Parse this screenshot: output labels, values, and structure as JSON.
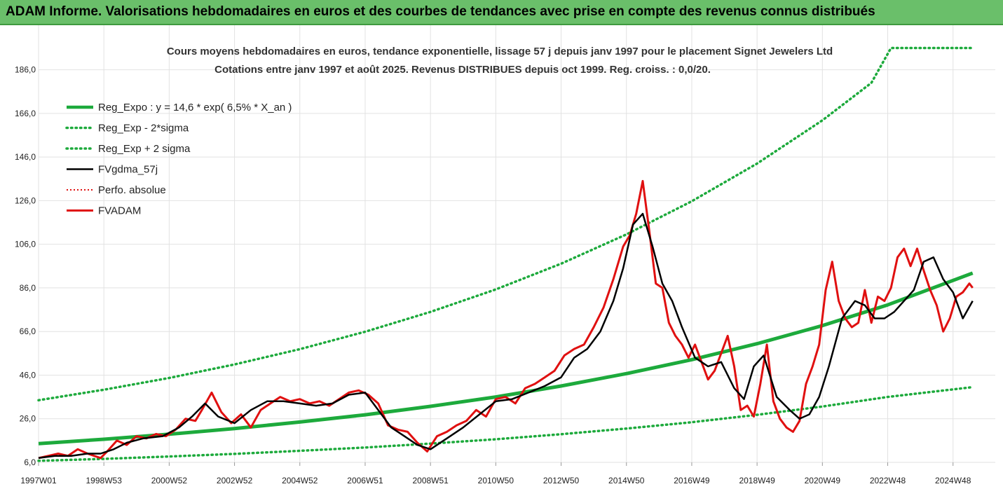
{
  "banner": {
    "title": "ADAM Informe. Valorisations hebdomadaires en euros et des courbes de tendances avec prise en compte des revenus connus distribués"
  },
  "colors": {
    "banner": "#6abf6a",
    "reg_expo": "#1daa3c",
    "fv_gdma": "#000000",
    "fvadam": "#e01010",
    "perfo": "#e01010"
  },
  "chart_data": {
    "type": "line",
    "title": "Cours moyens hebdomadaires en euros, tendance exponentielle, lissage 57 j depuis janv 1997 pour le placement Signet Jewelers Ltd",
    "subtitle": "Cotations entre janv 1997 et août 2025. Revenus DISTRIBUES depuis oct 1999. Reg. croiss. : 0,0/20.",
    "xlabel": "",
    "ylabel": "",
    "x_range": [
      1997.0,
      2025.65
    ],
    "ylim": [
      6,
      200
    ],
    "y_ticks": [
      "6,0",
      "26,0",
      "46,0",
      "66,0",
      "86,0",
      "106,0",
      "126,0",
      "146,0",
      "166,0",
      "186,0"
    ],
    "y_tick_values": [
      6,
      26,
      46,
      66,
      86,
      106,
      126,
      146,
      166,
      186
    ],
    "x_tick_labels": [
      "1997W01",
      "1998W53",
      "2000W52",
      "2002W52",
      "2004W52",
      "2006W51",
      "2008W51",
      "2010W50",
      "2012W50",
      "2014W50",
      "2016W49",
      "2018W49",
      "2020W49",
      "2022W48",
      "2024W48"
    ],
    "x_tick_values": [
      1997.0,
      1999.0,
      2001.0,
      2003.0,
      2005.0,
      2007.0,
      2009.0,
      2011.0,
      2013.0,
      2015.0,
      2017.0,
      2019.0,
      2021.0,
      2023.0,
      2025.0
    ],
    "grid": true,
    "legend_position": "top-left",
    "series": [
      {
        "name": "Reg_Expo : y = 14,6 * exp( 6,5% *  X_an )",
        "style": "solid-thick-green",
        "x": [
          1997,
          1999,
          2001,
          2003,
          2005,
          2007,
          2009,
          2011,
          2013,
          2015,
          2017,
          2019,
          2021,
          2023,
          2025.6
        ],
        "values": [
          14.6,
          16.6,
          18.9,
          21.5,
          24.5,
          27.8,
          31.7,
          36.0,
          41.0,
          46.7,
          53.1,
          60.4,
          68.7,
          78.2,
          92.8
        ]
      },
      {
        "name": "Reg_Exp - 2*sigma",
        "style": "dotted-green",
        "x": [
          1997,
          1999,
          2001,
          2003,
          2005,
          2007,
          2009,
          2011,
          2013,
          2015,
          2017,
          2019,
          2021,
          2023,
          2025.6
        ],
        "values": [
          6.7,
          7.6,
          8.7,
          9.9,
          11.3,
          12.8,
          14.6,
          16.6,
          18.9,
          21.5,
          24.4,
          27.8,
          31.6,
          36.0,
          40.5
        ]
      },
      {
        "name": "Reg_Exp + 2 sigma",
        "style": "dotted-green",
        "x": [
          1997,
          1999,
          2001,
          2003,
          2005,
          2007,
          2009,
          2011,
          2013,
          2015,
          2017,
          2019,
          2021,
          2022.5,
          2023.1,
          2025.6
        ],
        "values": [
          34.5,
          39.3,
          44.7,
          50.9,
          57.9,
          65.9,
          75.0,
          85.3,
          97.1,
          110.5,
          125.7,
          143.0,
          162.8,
          180.0,
          196.0,
          196.0
        ]
      },
      {
        "name": "FVgdma_57j",
        "style": "solid-black",
        "x": [
          1997.0,
          1997.5,
          1998.0,
          1998.5,
          1998.9,
          1999.3,
          1999.7,
          2000.2,
          2000.8,
          2001.3,
          2001.7,
          2002.1,
          2002.5,
          2003.0,
          2003.5,
          2004.0,
          2004.5,
          2005.0,
          2005.5,
          2006.0,
          2006.5,
          2007.0,
          2007.4,
          2007.8,
          2008.2,
          2008.6,
          2009.0,
          2009.5,
          2010.0,
          2010.5,
          2011.0,
          2011.5,
          2012.0,
          2012.5,
          2013.0,
          2013.4,
          2013.8,
          2014.2,
          2014.6,
          2014.9,
          2015.2,
          2015.5,
          2015.8,
          2016.1,
          2016.4,
          2016.7,
          2017.1,
          2017.5,
          2017.9,
          2018.3,
          2018.6,
          2018.9,
          2019.2,
          2019.6,
          2020.0,
          2020.3,
          2020.6,
          2020.9,
          2021.2,
          2021.6,
          2022.0,
          2022.3,
          2022.6,
          2022.9,
          2023.2,
          2023.5,
          2023.8,
          2024.1,
          2024.4,
          2024.7,
          2025.0,
          2025.3,
          2025.6
        ],
        "values": [
          8,
          9,
          9,
          10,
          10,
          12,
          15,
          17,
          18,
          22,
          27,
          33,
          27,
          24,
          30,
          34,
          34,
          33,
          32,
          33,
          37,
          38,
          30,
          22,
          18,
          14,
          12,
          17,
          22,
          28,
          34,
          35,
          38,
          41,
          45,
          54,
          58,
          66,
          80,
          95,
          115,
          120,
          105,
          88,
          80,
          68,
          54,
          50,
          52,
          40,
          35,
          50,
          55,
          36,
          30,
          26,
          28,
          36,
          50,
          72,
          80,
          78,
          72,
          72,
          75,
          80,
          85,
          98,
          100,
          90,
          84,
          72,
          80
        ]
      },
      {
        "name": "Perfo. absolue",
        "style": "dotted-red",
        "x": [],
        "values": []
      },
      {
        "name": "FVADAM",
        "style": "solid-thick-red",
        "x": [
          1997.0,
          1997.3,
          1997.6,
          1997.9,
          1998.2,
          1998.5,
          1998.9,
          1999.1,
          1999.4,
          1999.7,
          2000.0,
          2000.3,
          2000.6,
          2000.9,
          2001.2,
          2001.5,
          2001.8,
          2002.0,
          2002.3,
          2002.6,
          2002.9,
          2003.2,
          2003.5,
          2003.8,
          2004.1,
          2004.4,
          2004.7,
          2005.0,
          2005.3,
          2005.6,
          2005.9,
          2006.2,
          2006.5,
          2006.8,
          2007.1,
          2007.4,
          2007.7,
          2008.0,
          2008.3,
          2008.6,
          2008.9,
          2009.2,
          2009.5,
          2009.8,
          2010.1,
          2010.4,
          2010.7,
          2011.0,
          2011.3,
          2011.6,
          2011.9,
          2012.2,
          2012.5,
          2012.8,
          2013.1,
          2013.4,
          2013.7,
          2014.0,
          2014.3,
          2014.6,
          2014.9,
          2015.1,
          2015.3,
          2015.5,
          2015.7,
          2015.9,
          2016.1,
          2016.3,
          2016.5,
          2016.7,
          2016.9,
          2017.1,
          2017.3,
          2017.5,
          2017.7,
          2017.9,
          2018.1,
          2018.3,
          2018.5,
          2018.7,
          2018.9,
          2019.1,
          2019.3,
          2019.5,
          2019.7,
          2019.9,
          2020.1,
          2020.3,
          2020.5,
          2020.7,
          2020.9,
          2021.1,
          2021.3,
          2021.5,
          2021.7,
          2021.9,
          2022.1,
          2022.3,
          2022.5,
          2022.7,
          2022.9,
          2023.1,
          2023.3,
          2023.5,
          2023.7,
          2023.9,
          2024.1,
          2024.3,
          2024.5,
          2024.7,
          2024.9,
          2025.1,
          2025.3,
          2025.5,
          2025.6
        ],
        "values": [
          8,
          9,
          10,
          9,
          12,
          10,
          8,
          11,
          16,
          14,
          18,
          17,
          19,
          18,
          21,
          26,
          25,
          30,
          38,
          29,
          24,
          28,
          22,
          30,
          33,
          36,
          34,
          35,
          33,
          34,
          32,
          35,
          38,
          39,
          37,
          33,
          23,
          21,
          20,
          15,
          11,
          18,
          20,
          23,
          25,
          30,
          27,
          35,
          36,
          33,
          40,
          42,
          45,
          48,
          55,
          58,
          60,
          68,
          77,
          90,
          105,
          110,
          120,
          135,
          112,
          88,
          86,
          70,
          64,
          60,
          54,
          60,
          52,
          44,
          48,
          56,
          64,
          50,
          30,
          32,
          27,
          42,
          60,
          34,
          26,
          22,
          20,
          25,
          42,
          50,
          60,
          85,
          98,
          80,
          72,
          68,
          70,
          85,
          70,
          82,
          80,
          86,
          100,
          104,
          96,
          104,
          94,
          85,
          78,
          66,
          72,
          82,
          84,
          88,
          86
        ]
      }
    ]
  }
}
